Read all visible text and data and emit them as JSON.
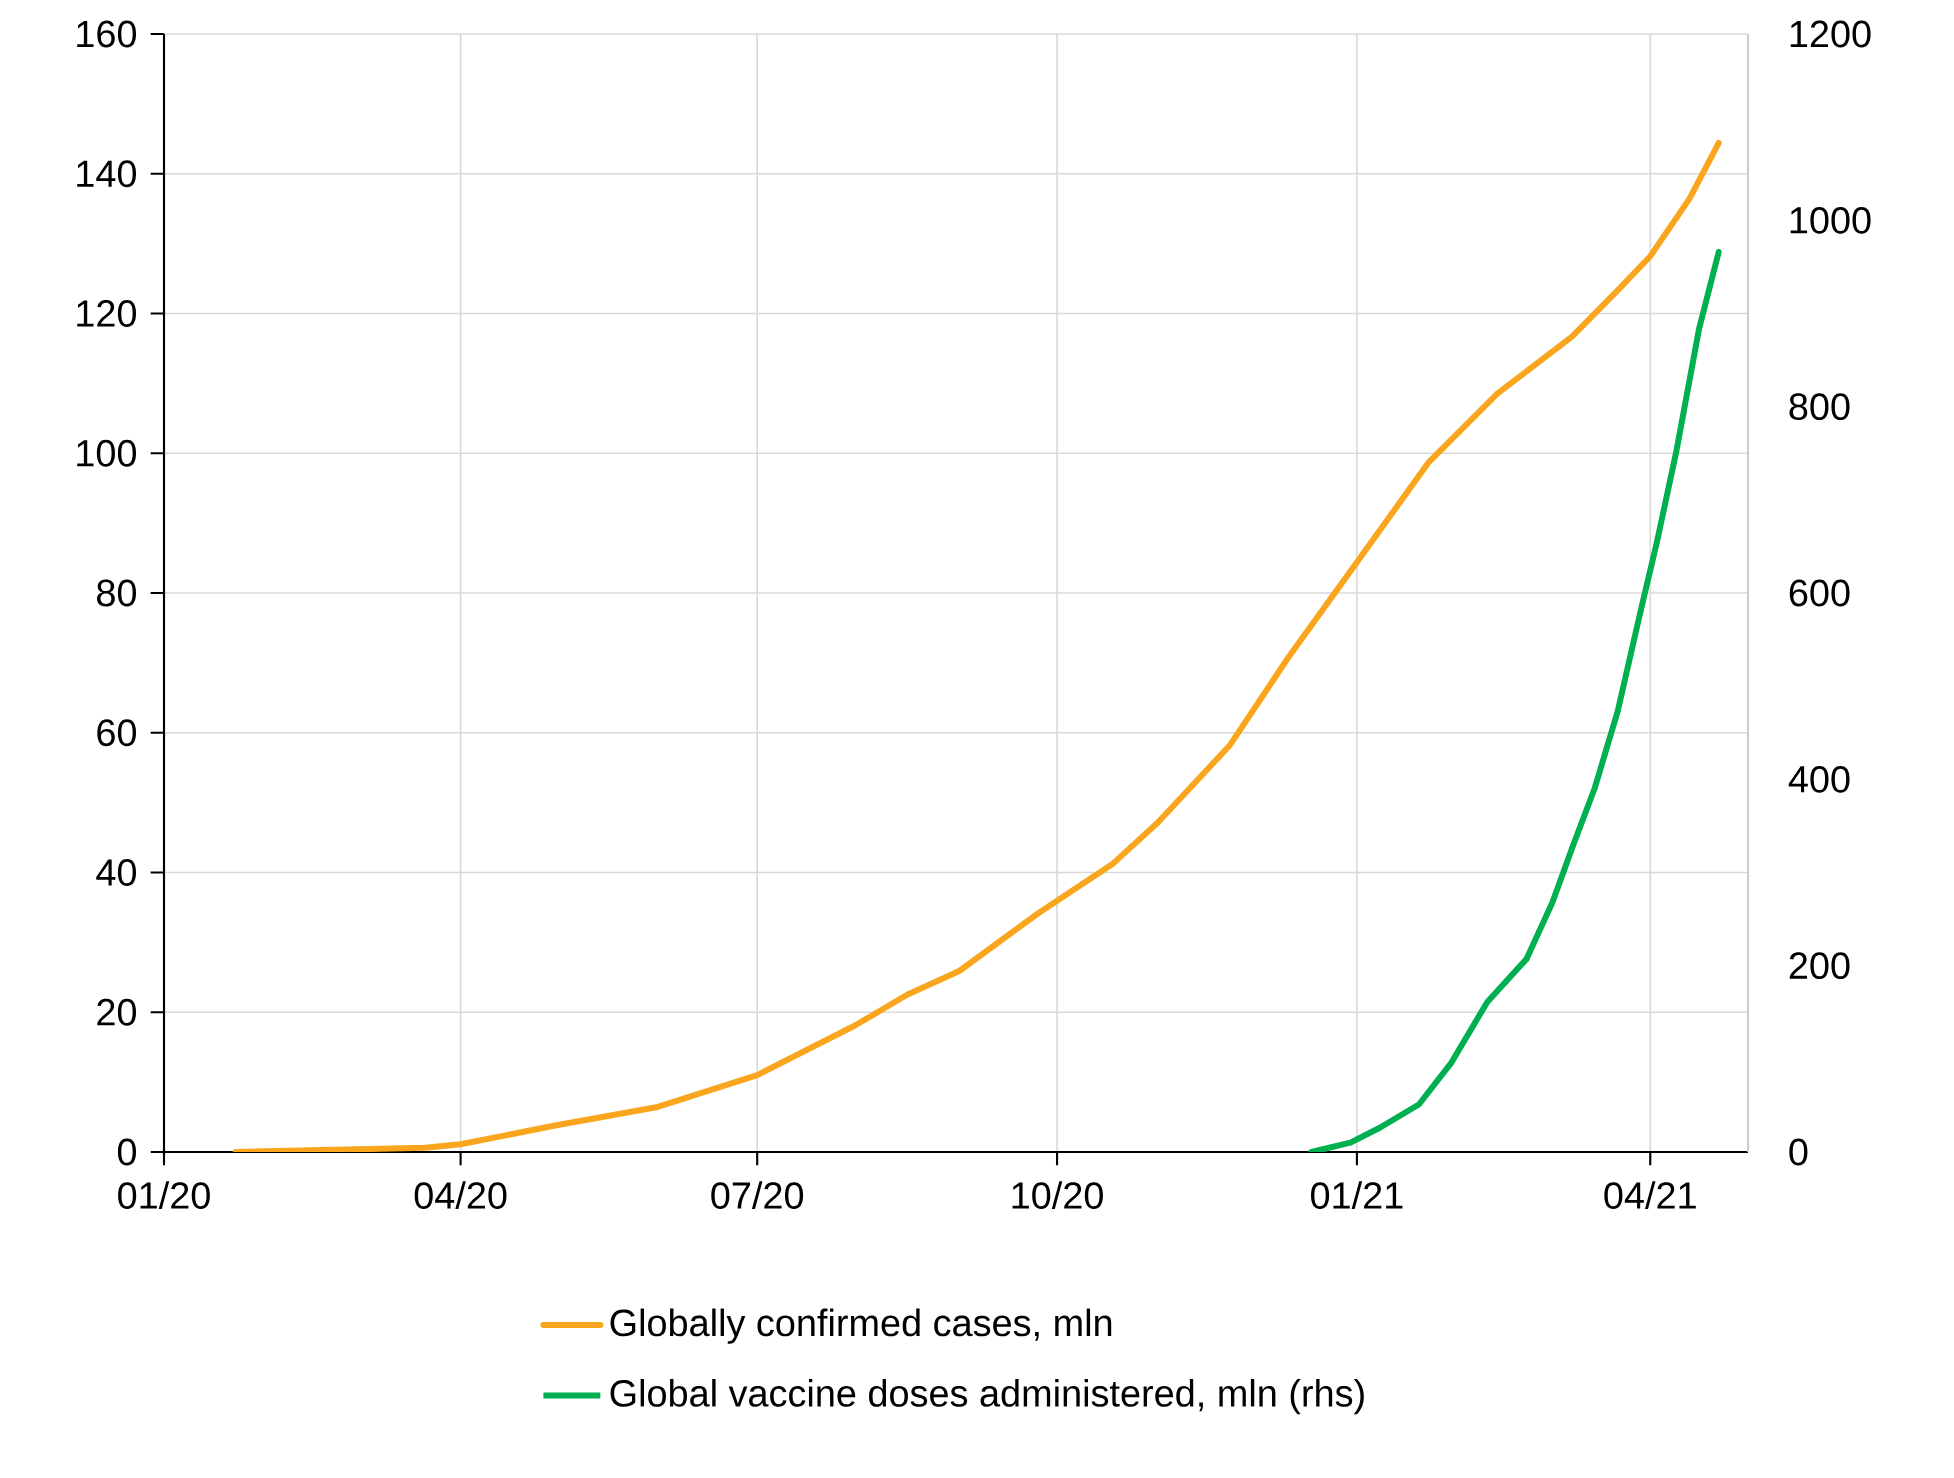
{
  "chart_data": {
    "type": "line",
    "xlim": [
      "2020-01-01",
      "2021-05-01"
    ],
    "xticks": [
      {
        "value": "2020-01-01",
        "label": "01/20"
      },
      {
        "value": "2020-04-01",
        "label": "04/20"
      },
      {
        "value": "2020-07-01",
        "label": "07/20"
      },
      {
        "value": "2020-10-01",
        "label": "10/20"
      },
      {
        "value": "2021-01-01",
        "label": "01/21"
      },
      {
        "value": "2021-04-01",
        "label": "04/21"
      }
    ],
    "ylim": [
      0,
      160
    ],
    "yticks": [
      0,
      20,
      40,
      60,
      80,
      100,
      120,
      140,
      160
    ],
    "y2lim": [
      0,
      1200
    ],
    "y2ticks": [
      0,
      200,
      400,
      600,
      800,
      1000,
      1200
    ],
    "grid": true,
    "legend": "bottom",
    "marker": "none",
    "line_style": "solid",
    "series": [
      {
        "name": "Globally confirmed cases, mln",
        "color": "#f9a51d",
        "x": [
          "2020-01-23",
          "2020-03-21",
          "2020-04-01",
          "2020-04-30",
          "2020-05-31",
          "2020-07-01",
          "2020-07-31",
          "2020-08-16",
          "2020-09-01",
          "2020-09-25",
          "2020-10-18",
          "2020-11-01",
          "2020-11-23",
          "2020-12-11",
          "2021-01-01",
          "2021-01-23",
          "2021-02-13",
          "2021-03-08",
          "2021-03-22",
          "2021-04-01",
          "2021-04-13",
          "2021-04-22"
        ],
        "values": [
          0,
          0.6,
          1.1,
          3.8,
          6.4,
          11.0,
          18.1,
          22.5,
          25.9,
          34.1,
          41.2,
          47.2,
          58.2,
          70.8,
          84.4,
          98.7,
          108.5,
          116.7,
          123.3,
          128.2,
          136.4,
          144.4
        ]
      },
      {
        "name": "Global vaccine doses administered, mln (rhs)",
        "color": "#00b050",
        "axis": "y2",
        "x": [
          "2020-12-18",
          "2020-12-30",
          "2021-01-08",
          "2021-01-20",
          "2021-01-30",
          "2021-02-10",
          "2021-02-22",
          "2021-03-02",
          "2021-03-08",
          "2021-03-15",
          "2021-03-22",
          "2021-03-29",
          "2021-04-03",
          "2021-04-09",
          "2021-04-16",
          "2021-04-22"
        ],
        "values": [
          0,
          10,
          26,
          51,
          96,
          161,
          207,
          268,
          326,
          391,
          473,
          580,
          654,
          752,
          884,
          966
        ]
      }
    ]
  }
}
